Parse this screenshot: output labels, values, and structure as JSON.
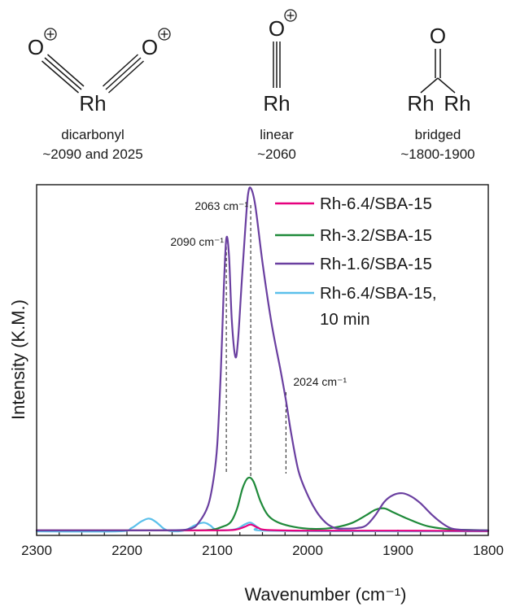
{
  "structures": [
    {
      "id": "dicarbonyl",
      "atoms": {
        "o_left": "O",
        "o_right": "O",
        "metal": "Rh",
        "charge_left": "⊕",
        "charge_right": "⊕"
      },
      "name": "dicarbonyl",
      "range": "~2090 and 2025"
    },
    {
      "id": "linear",
      "atoms": {
        "o": "O",
        "metal": "Rh",
        "charge": "⊕"
      },
      "name": "linear",
      "range": "~2060"
    },
    {
      "id": "bridged",
      "atoms": {
        "o": "O",
        "metal_left": "Rh",
        "metal_right": "Rh"
      },
      "name": "bridged",
      "range": "~1800-1900"
    }
  ],
  "chart_data": {
    "type": "line",
    "xlabel": "Wavenumber (cm⁻¹)",
    "ylabel": "Intensity (K.M.)",
    "xlim": [
      2300,
      1800
    ],
    "x_reversed": true,
    "ylim": [
      -0.1,
      10.3
    ],
    "y_ticks_shown": false,
    "xticks": [
      2300,
      2200,
      2100,
      2000,
      1900,
      1800
    ],
    "xtick_labels": [
      "2300",
      "2200",
      "2100",
      "2000",
      "1900",
      "1800"
    ],
    "legend": {
      "position": "top-right",
      "entries": [
        "Rh-6.4/SBA-15",
        "Rh-3.2/SBA-15",
        "Rh-1.6/SBA-15",
        "Rh-6.4/SBA-15,",
        "10 min"
      ]
    },
    "annotations": [
      {
        "text": "2090 cm⁻¹",
        "x": 2090
      },
      {
        "text": "2063 cm⁻¹",
        "x": 2063
      },
      {
        "text": "2024 cm⁻¹",
        "x": 2024
      }
    ],
    "series": [
      {
        "name": "Rh-6.4/SBA-15",
        "color": "#e6007e",
        "points": [
          [
            2300,
            0.05
          ],
          [
            2200,
            0.05
          ],
          [
            2100,
            0.05
          ],
          [
            2080,
            0.07
          ],
          [
            2070,
            0.15
          ],
          [
            2063,
            0.22
          ],
          [
            2055,
            0.13
          ],
          [
            2045,
            0.06
          ],
          [
            2000,
            0.04
          ],
          [
            1900,
            0.04
          ],
          [
            1800,
            0.03
          ]
        ]
      },
      {
        "name": "Rh-3.2/SBA-15",
        "color": "#1f8a3a",
        "points": [
          [
            2300,
            0.05
          ],
          [
            2150,
            0.05
          ],
          [
            2110,
            0.06
          ],
          [
            2095,
            0.15
          ],
          [
            2085,
            0.3
          ],
          [
            2078,
            0.7
          ],
          [
            2072,
            1.3
          ],
          [
            2066,
            1.6
          ],
          [
            2060,
            1.5
          ],
          [
            2052,
            0.9
          ],
          [
            2044,
            0.5
          ],
          [
            2034,
            0.3
          ],
          [
            2020,
            0.18
          ],
          [
            2000,
            0.1
          ],
          [
            1980,
            0.1
          ],
          [
            1965,
            0.16
          ],
          [
            1950,
            0.28
          ],
          [
            1935,
            0.5
          ],
          [
            1925,
            0.66
          ],
          [
            1915,
            0.7
          ],
          [
            1905,
            0.58
          ],
          [
            1890,
            0.4
          ],
          [
            1875,
            0.24
          ],
          [
            1865,
            0.16
          ],
          [
            1850,
            0.1
          ],
          [
            1835,
            0.07
          ],
          [
            1800,
            0.05
          ]
        ]
      },
      {
        "name": "Rh-1.6/SBA-15",
        "color": "#6a3fa0",
        "points": [
          [
            2300,
            0.05
          ],
          [
            2160,
            0.05
          ],
          [
            2130,
            0.1
          ],
          [
            2120,
            0.3
          ],
          [
            2110,
            0.8
          ],
          [
            2104,
            1.6
          ],
          [
            2100,
            2.6
          ],
          [
            2096,
            4.8
          ],
          [
            2093,
            7.1
          ],
          [
            2090,
            8.7
          ],
          [
            2087,
            8.2
          ],
          [
            2084,
            6.3
          ],
          [
            2080,
            5.2
          ],
          [
            2077,
            5.7
          ],
          [
            2073,
            7.4
          ],
          [
            2069,
            9.0
          ],
          [
            2066,
            10.0
          ],
          [
            2063,
            10.2
          ],
          [
            2058,
            9.7
          ],
          [
            2050,
            8.0
          ],
          [
            2040,
            6.2
          ],
          [
            2030,
            4.8
          ],
          [
            2024,
            3.9
          ],
          [
            2018,
            2.9
          ],
          [
            2010,
            1.8
          ],
          [
            2000,
            1.1
          ],
          [
            1990,
            0.6
          ],
          [
            1980,
            0.28
          ],
          [
            1970,
            0.12
          ],
          [
            1960,
            0.1
          ],
          [
            1945,
            0.12
          ],
          [
            1935,
            0.2
          ],
          [
            1925,
            0.5
          ],
          [
            1915,
            0.9
          ],
          [
            1905,
            1.1
          ],
          [
            1895,
            1.15
          ],
          [
            1885,
            1.05
          ],
          [
            1875,
            0.85
          ],
          [
            1862,
            0.5
          ],
          [
            1850,
            0.24
          ],
          [
            1840,
            0.1
          ],
          [
            1825,
            0.06
          ],
          [
            1800,
            0.05
          ]
        ]
      },
      {
        "name": "Rh-6.4/SBA-15, 10 min",
        "color": "#5bc0eb",
        "points": [
          [
            2300,
            0.02
          ],
          [
            2210,
            0.02
          ],
          [
            2195,
            0.12
          ],
          [
            2185,
            0.3
          ],
          [
            2176,
            0.4
          ],
          [
            2168,
            0.3
          ],
          [
            2158,
            0.08
          ],
          [
            2148,
            0.02
          ],
          [
            2135,
            0.06
          ],
          [
            2125,
            0.2
          ],
          [
            2115,
            0.28
          ],
          [
            2108,
            0.2
          ],
          [
            2100,
            0.06
          ],
          [
            2080,
            0.08
          ],
          [
            2070,
            0.22
          ],
          [
            2063,
            0.28
          ],
          [
            2055,
            0.14
          ],
          [
            2045,
            0.04
          ],
          [
            1900,
            0.02
          ],
          [
            1800,
            0.02
          ]
        ]
      }
    ]
  }
}
